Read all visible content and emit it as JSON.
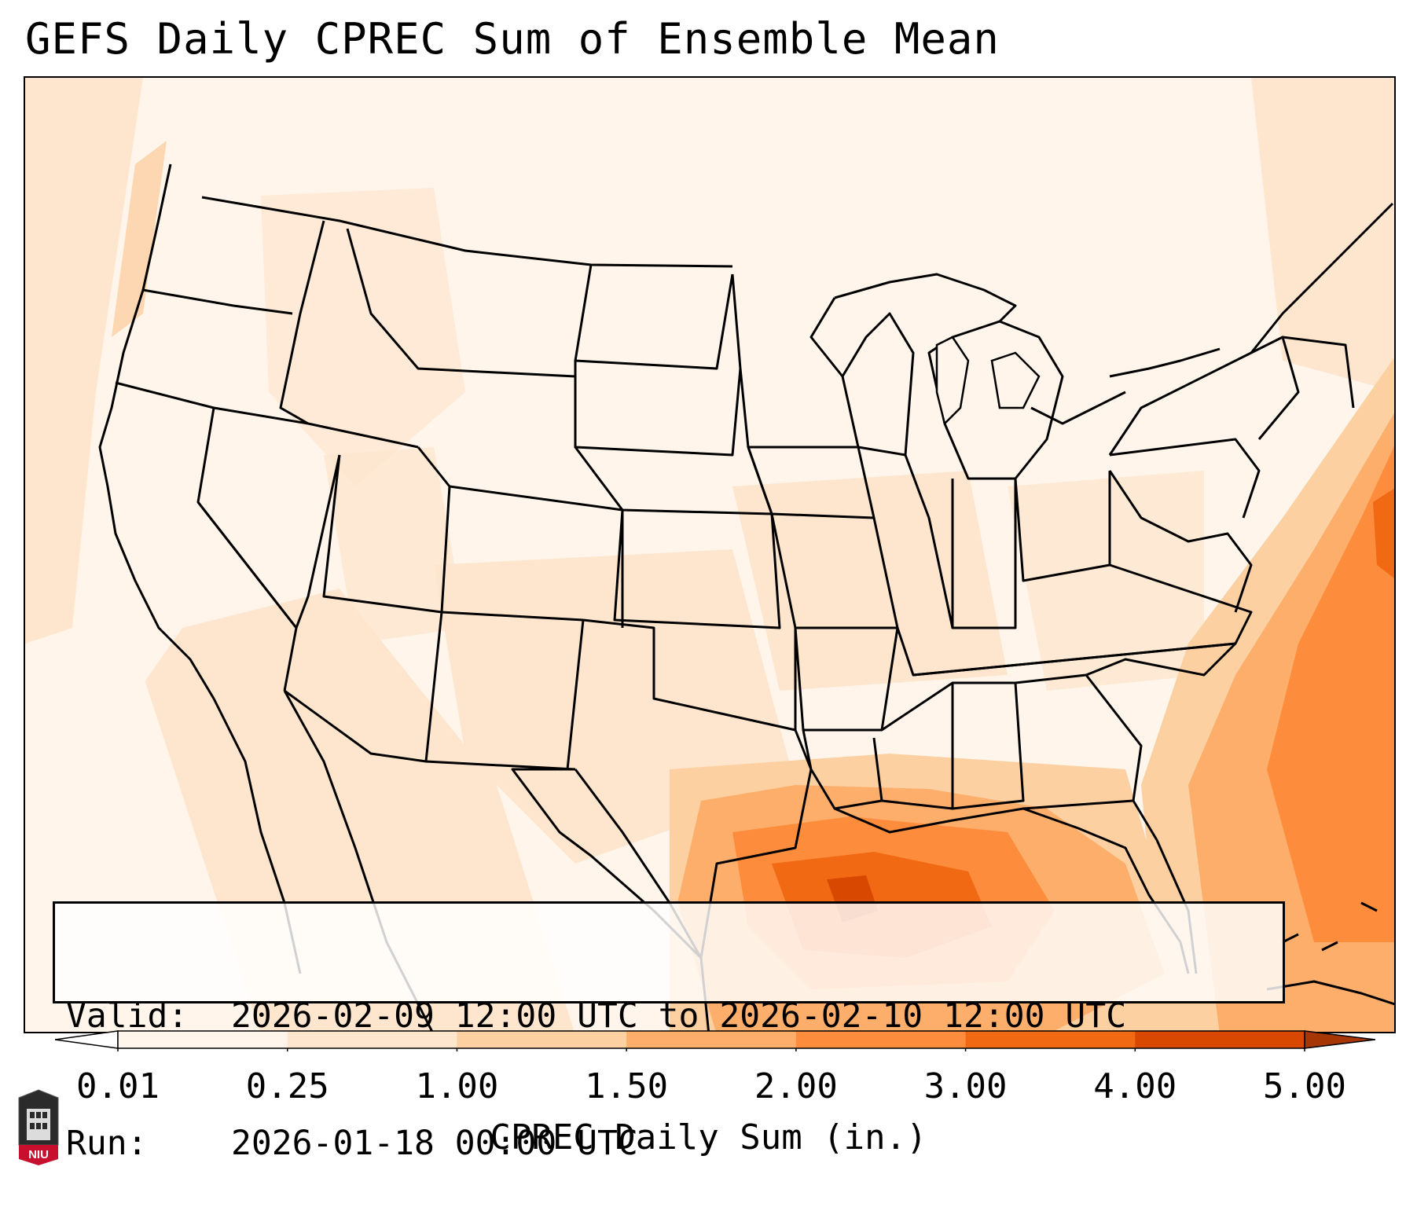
{
  "title": "GEFS Daily CPREC Sum of Ensemble Mean",
  "info": {
    "valid_label": "Valid:",
    "valid_value": "2026-02-09 12:00 UTC to 2026-02-10 12:00 UTC",
    "run_label": "Run:",
    "run_value": "2026-01-18 00:00 UTC"
  },
  "colorbar": {
    "title": "CPREC Daily Sum (in.)",
    "ticks": [
      "0.01",
      "0.25",
      "1.00",
      "1.50",
      "2.00",
      "3.00",
      "4.00",
      "5.00"
    ],
    "colors": [
      "#fff5eb",
      "#fee6ce",
      "#fdd0a2",
      "#fdae6b",
      "#fd8d3c",
      "#f16913",
      "#d94801"
    ],
    "under_color": "#ffffff",
    "over_color": "#a63603"
  },
  "logo": {
    "text": "NIU",
    "name": "niu-logo"
  },
  "map": {
    "region": "Contiguous United States",
    "features": [
      "state-borders",
      "coastlines",
      "lakes",
      "precipitation-field"
    ]
  }
}
